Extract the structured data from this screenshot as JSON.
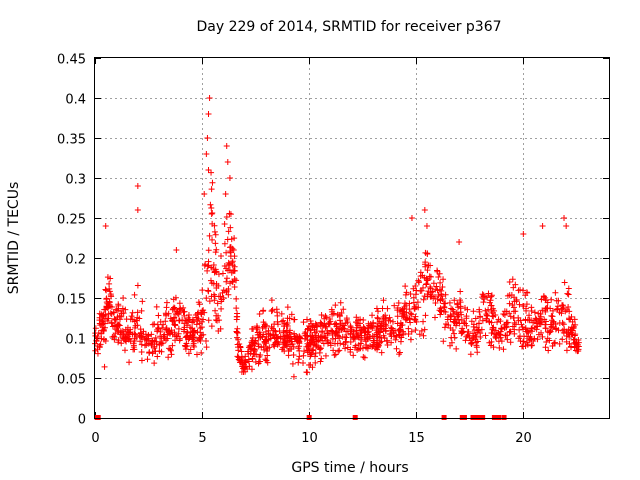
{
  "chart_data": {
    "type": "scatter",
    "title": "Day 229 of 2014, SRMTID for receiver p367",
    "xlabel": "GPS time / hours",
    "ylabel": "SRMTID / TECUs",
    "xlim": [
      0,
      24
    ],
    "ylim": [
      0,
      0.45
    ],
    "x_ticks": [
      0,
      5,
      10,
      15,
      20
    ],
    "x_tick_labels": [
      "0",
      "5",
      "10",
      "15",
      "20"
    ],
    "y_ticks": [
      0,
      0.05,
      0.1,
      0.15,
      0.2,
      0.25,
      0.3,
      0.35,
      0.4,
      0.45
    ],
    "y_tick_labels": [
      "0",
      "0.05",
      "0.1",
      "0.15",
      "0.2",
      "0.25",
      "0.3",
      "0.35",
      "0.4",
      "0.45"
    ],
    "grid": true,
    "marker": "plus",
    "color": "#ff0000",
    "envelope": {
      "x": [
        0.0,
        0.3,
        0.5,
        0.7,
        0.8,
        1.0,
        1.3,
        1.6,
        1.9,
        2.0,
        2.2,
        2.5,
        2.8,
        3.0,
        3.3,
        3.5,
        3.8,
        4.0,
        4.3,
        4.6,
        4.9,
        5.1,
        5.3,
        5.5,
        5.7,
        5.9,
        6.1,
        6.3,
        6.5,
        6.7,
        7.0,
        7.3,
        7.6,
        8.0,
        8.5,
        9.0,
        9.5,
        10.0,
        10.5,
        11.0,
        11.5,
        12.0,
        12.5,
        13.0,
        13.5,
        14.0,
        14.5,
        15.0,
        15.3,
        15.6,
        16.0,
        16.3,
        16.6,
        17.0,
        17.3,
        17.6,
        18.0,
        18.3,
        18.6,
        19.0,
        19.3,
        19.6,
        20.0,
        20.3,
        20.6,
        21.0,
        21.3,
        21.6,
        22.0,
        22.3,
        22.6
      ],
      "center": [
        0.09,
        0.12,
        0.12,
        0.15,
        0.12,
        0.12,
        0.11,
        0.1,
        0.1,
        0.13,
        0.1,
        0.09,
        0.09,
        0.1,
        0.1,
        0.11,
        0.12,
        0.12,
        0.11,
        0.1,
        0.11,
        0.14,
        0.16,
        0.22,
        0.15,
        0.15,
        0.18,
        0.21,
        0.19,
        0.08,
        0.06,
        0.08,
        0.1,
        0.1,
        0.11,
        0.1,
        0.09,
        0.09,
        0.1,
        0.11,
        0.11,
        0.1,
        0.1,
        0.1,
        0.11,
        0.11,
        0.12,
        0.14,
        0.16,
        0.17,
        0.15,
        0.13,
        0.12,
        0.13,
        0.11,
        0.1,
        0.12,
        0.13,
        0.11,
        0.1,
        0.12,
        0.13,
        0.12,
        0.11,
        0.11,
        0.12,
        0.12,
        0.12,
        0.13,
        0.1,
        0.09
      ],
      "spread": [
        0.03,
        0.06,
        0.08,
        0.06,
        0.05,
        0.05,
        0.05,
        0.05,
        0.06,
        0.08,
        0.06,
        0.05,
        0.05,
        0.05,
        0.05,
        0.06,
        0.06,
        0.05,
        0.05,
        0.05,
        0.06,
        0.12,
        0.15,
        0.17,
        0.08,
        0.08,
        0.12,
        0.1,
        0.08,
        0.03,
        0.03,
        0.04,
        0.05,
        0.05,
        0.05,
        0.05,
        0.05,
        0.05,
        0.05,
        0.05,
        0.05,
        0.05,
        0.05,
        0.05,
        0.05,
        0.05,
        0.06,
        0.08,
        0.09,
        0.08,
        0.07,
        0.06,
        0.06,
        0.07,
        0.05,
        0.05,
        0.06,
        0.06,
        0.06,
        0.05,
        0.06,
        0.07,
        0.08,
        0.07,
        0.06,
        0.08,
        0.07,
        0.07,
        0.08,
        0.04,
        0.03
      ]
    },
    "spikes": [
      [
        0.5,
        0.24
      ],
      [
        2.0,
        0.29
      ],
      [
        2.0,
        0.26
      ],
      [
        3.8,
        0.21
      ],
      [
        5.35,
        0.4
      ],
      [
        5.3,
        0.38
      ],
      [
        5.25,
        0.35
      ],
      [
        5.2,
        0.33
      ],
      [
        5.3,
        0.31
      ],
      [
        5.1,
        0.28
      ],
      [
        6.15,
        0.34
      ],
      [
        6.2,
        0.32
      ],
      [
        6.3,
        0.3
      ],
      [
        6.1,
        0.28
      ],
      [
        14.8,
        0.25
      ],
      [
        15.4,
        0.26
      ],
      [
        15.5,
        0.24
      ],
      [
        17.0,
        0.22
      ],
      [
        20.0,
        0.23
      ],
      [
        20.9,
        0.24
      ],
      [
        21.9,
        0.25
      ],
      [
        22.0,
        0.24
      ]
    ],
    "zero_points_x": [
      0.1,
      0.15,
      10.0,
      12.15,
      16.3,
      17.15,
      17.25,
      17.65,
      17.75,
      17.85,
      17.95,
      18.1,
      18.65,
      18.75,
      18.85,
      19.1
    ]
  }
}
